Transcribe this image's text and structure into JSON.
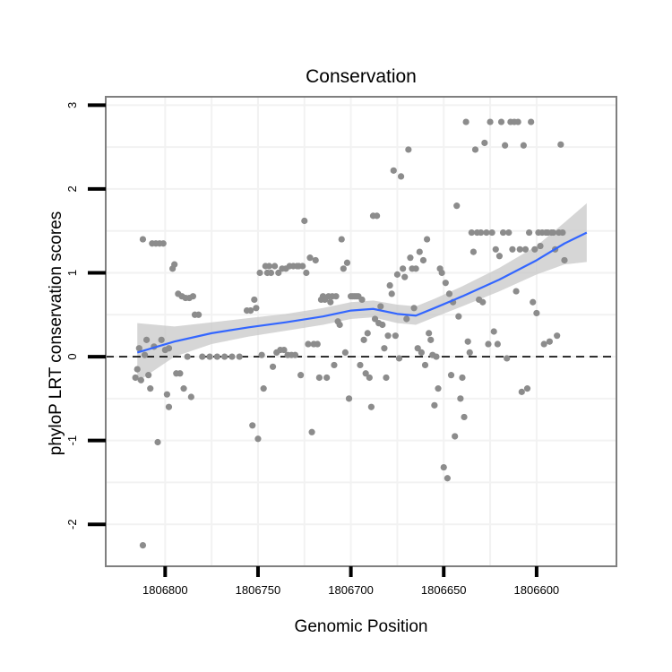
{
  "chart_data": {
    "type": "scatter",
    "title": "Conservation",
    "xlabel": "Genomic Position",
    "ylabel": "phyloP LRT conservation scores",
    "x_reversed": true,
    "xlim": [
      1806832,
      1806557
    ],
    "ylim": [
      -2.5,
      3.1
    ],
    "x_ticks": [
      1806800,
      1806750,
      1806700,
      1806650,
      1806600
    ],
    "x_tick_labels": [
      "1806800",
      "1806750",
      "1806700",
      "1806650",
      "1806600"
    ],
    "y_ticks": [
      -2,
      -1,
      0,
      1,
      2,
      3
    ],
    "y_tick_labels": [
      "-2",
      "-1",
      "0",
      "1",
      "2",
      "3"
    ],
    "reference_line": {
      "y": 0,
      "style": "dashed"
    },
    "point_color": "#8c8c8c",
    "smooth_color": "#3366ff",
    "band_color": "#c8c8c8",
    "grid_color": "#f2f2f2",
    "points": [
      {
        "x": 1806816,
        "y": -0.25
      },
      {
        "x": 1806815,
        "y": -0.15
      },
      {
        "x": 1806814,
        "y": 0.1
      },
      {
        "x": 1806813,
        "y": -0.28
      },
      {
        "x": 1806812,
        "y": 1.4
      },
      {
        "x": 1806812,
        "y": -2.25
      },
      {
        "x": 1806811,
        "y": 0.02
      },
      {
        "x": 1806810,
        "y": 0.2
      },
      {
        "x": 1806809,
        "y": -0.22
      },
      {
        "x": 1806808,
        "y": -0.38
      },
      {
        "x": 1806807,
        "y": 1.35
      },
      {
        "x": 1806806,
        "y": 0.12
      },
      {
        "x": 1806805,
        "y": 1.35
      },
      {
        "x": 1806804,
        "y": -1.02
      },
      {
        "x": 1806803,
        "y": 1.35
      },
      {
        "x": 1806802,
        "y": 0.2
      },
      {
        "x": 1806801,
        "y": 1.35
      },
      {
        "x": 1806800,
        "y": 0.08
      },
      {
        "x": 1806799,
        "y": -0.45
      },
      {
        "x": 1806798,
        "y": -0.6
      },
      {
        "x": 1806798,
        "y": 0.1
      },
      {
        "x": 1806796,
        "y": 1.05
      },
      {
        "x": 1806795,
        "y": 1.1
      },
      {
        "x": 1806794,
        "y": -0.2
      },
      {
        "x": 1806793,
        "y": 0.75
      },
      {
        "x": 1806792,
        "y": -0.2
      },
      {
        "x": 1806791,
        "y": 0.72
      },
      {
        "x": 1806790,
        "y": -0.38
      },
      {
        "x": 1806789,
        "y": 0.7
      },
      {
        "x": 1806788,
        "y": 0.0
      },
      {
        "x": 1806787,
        "y": 0.7
      },
      {
        "x": 1806786,
        "y": -0.48
      },
      {
        "x": 1806785,
        "y": 0.72
      },
      {
        "x": 1806784,
        "y": 0.5
      },
      {
        "x": 1806782,
        "y": 0.5
      },
      {
        "x": 1806780,
        "y": 0.0
      },
      {
        "x": 1806776,
        "y": 0.0
      },
      {
        "x": 1806772,
        "y": 0.0
      },
      {
        "x": 1806768,
        "y": 0.0
      },
      {
        "x": 1806764,
        "y": 0.0
      },
      {
        "x": 1806760,
        "y": 0.0
      },
      {
        "x": 1806756,
        "y": 0.55
      },
      {
        "x": 1806754,
        "y": 0.55
      },
      {
        "x": 1806753,
        "y": -0.82
      },
      {
        "x": 1806752,
        "y": 0.68
      },
      {
        "x": 1806751,
        "y": 0.58
      },
      {
        "x": 1806750,
        "y": -0.98
      },
      {
        "x": 1806749,
        "y": 1.0
      },
      {
        "x": 1806748,
        "y": 0.02
      },
      {
        "x": 1806747,
        "y": -0.38
      },
      {
        "x": 1806746,
        "y": 1.08
      },
      {
        "x": 1806745,
        "y": 1.0
      },
      {
        "x": 1806744,
        "y": 1.08
      },
      {
        "x": 1806743,
        "y": 1.0
      },
      {
        "x": 1806742,
        "y": -0.12
      },
      {
        "x": 1806741,
        "y": 1.08
      },
      {
        "x": 1806740,
        "y": 0.05
      },
      {
        "x": 1806739,
        "y": 1.0
      },
      {
        "x": 1806738,
        "y": 0.08
      },
      {
        "x": 1806737,
        "y": 1.05
      },
      {
        "x": 1806736,
        "y": 0.08
      },
      {
        "x": 1806735,
        "y": 1.05
      },
      {
        "x": 1806734,
        "y": 0.02
      },
      {
        "x": 1806733,
        "y": 1.08
      },
      {
        "x": 1806732,
        "y": 0.02
      },
      {
        "x": 1806731,
        "y": 1.08
      },
      {
        "x": 1806730,
        "y": 0.02
      },
      {
        "x": 1806729,
        "y": 1.08
      },
      {
        "x": 1806728,
        "y": 1.08
      },
      {
        "x": 1806727,
        "y": -0.22
      },
      {
        "x": 1806726,
        "y": 1.08
      },
      {
        "x": 1806725,
        "y": 1.62
      },
      {
        "x": 1806724,
        "y": 1.0
      },
      {
        "x": 1806723,
        "y": 0.15
      },
      {
        "x": 1806722,
        "y": 1.18
      },
      {
        "x": 1806721,
        "y": -0.9
      },
      {
        "x": 1806720,
        "y": 0.15
      },
      {
        "x": 1806719,
        "y": 1.15
      },
      {
        "x": 1806718,
        "y": 0.15
      },
      {
        "x": 1806717,
        "y": -0.25
      },
      {
        "x": 1806716,
        "y": 0.68
      },
      {
        "x": 1806715,
        "y": 0.72
      },
      {
        "x": 1806714,
        "y": 0.68
      },
      {
        "x": 1806713,
        "y": -0.25
      },
      {
        "x": 1806712,
        "y": 0.72
      },
      {
        "x": 1806711,
        "y": 0.65
      },
      {
        "x": 1806710,
        "y": 0.72
      },
      {
        "x": 1806709,
        "y": -0.1
      },
      {
        "x": 1806708,
        "y": 0.72
      },
      {
        "x": 1806707,
        "y": 0.42
      },
      {
        "x": 1806706,
        "y": 0.38
      },
      {
        "x": 1806705,
        "y": 1.4
      },
      {
        "x": 1806704,
        "y": 1.05
      },
      {
        "x": 1806703,
        "y": 0.05
      },
      {
        "x": 1806702,
        "y": 1.12
      },
      {
        "x": 1806701,
        "y": -0.5
      },
      {
        "x": 1806700,
        "y": 0.72
      },
      {
        "x": 1806699,
        "y": 0.72
      },
      {
        "x": 1806698,
        "y": 0.72
      },
      {
        "x": 1806697,
        "y": 0.72
      },
      {
        "x": 1806696,
        "y": 0.72
      },
      {
        "x": 1806695,
        "y": -0.1
      },
      {
        "x": 1806694,
        "y": 0.68
      },
      {
        "x": 1806693,
        "y": 0.2
      },
      {
        "x": 1806692,
        "y": -0.2
      },
      {
        "x": 1806691,
        "y": 0.28
      },
      {
        "x": 1806690,
        "y": -0.25
      },
      {
        "x": 1806689,
        "y": -0.6
      },
      {
        "x": 1806688,
        "y": 1.68
      },
      {
        "x": 1806687,
        "y": 0.45
      },
      {
        "x": 1806686,
        "y": 1.68
      },
      {
        "x": 1806685,
        "y": 0.4
      },
      {
        "x": 1806684,
        "y": 0.6
      },
      {
        "x": 1806683,
        "y": 0.38
      },
      {
        "x": 1806682,
        "y": 0.1
      },
      {
        "x": 1806681,
        "y": -0.25
      },
      {
        "x": 1806680,
        "y": 0.25
      },
      {
        "x": 1806679,
        "y": 0.85
      },
      {
        "x": 1806678,
        "y": 0.75
      },
      {
        "x": 1806677,
        "y": 2.22
      },
      {
        "x": 1806676,
        "y": 0.25
      },
      {
        "x": 1806675,
        "y": 0.98
      },
      {
        "x": 1806674,
        "y": -0.02
      },
      {
        "x": 1806673,
        "y": 2.15
      },
      {
        "x": 1806672,
        "y": 1.05
      },
      {
        "x": 1806671,
        "y": 0.95
      },
      {
        "x": 1806670,
        "y": 0.45
      },
      {
        "x": 1806669,
        "y": 2.47
      },
      {
        "x": 1806668,
        "y": 1.18
      },
      {
        "x": 1806667,
        "y": 1.05
      },
      {
        "x": 1806666,
        "y": 0.58
      },
      {
        "x": 1806665,
        "y": 1.05
      },
      {
        "x": 1806664,
        "y": 0.1
      },
      {
        "x": 1806663,
        "y": 1.25
      },
      {
        "x": 1806662,
        "y": 0.05
      },
      {
        "x": 1806661,
        "y": 1.15
      },
      {
        "x": 1806660,
        "y": -0.1
      },
      {
        "x": 1806659,
        "y": 1.4
      },
      {
        "x": 1806658,
        "y": 0.28
      },
      {
        "x": 1806657,
        "y": 0.2
      },
      {
        "x": 1806656,
        "y": 0.02
      },
      {
        "x": 1806655,
        "y": -0.58
      },
      {
        "x": 1806654,
        "y": 0.0
      },
      {
        "x": 1806653,
        "y": -0.38
      },
      {
        "x": 1806652,
        "y": 1.05
      },
      {
        "x": 1806651,
        "y": 1.0
      },
      {
        "x": 1806650,
        "y": -1.32
      },
      {
        "x": 1806649,
        "y": 0.88
      },
      {
        "x": 1806648,
        "y": -1.45
      },
      {
        "x": 1806647,
        "y": 0.75
      },
      {
        "x": 1806646,
        "y": -0.22
      },
      {
        "x": 1806645,
        "y": 0.65
      },
      {
        "x": 1806644,
        "y": -0.95
      },
      {
        "x": 1806643,
        "y": 1.8
      },
      {
        "x": 1806642,
        "y": 0.48
      },
      {
        "x": 1806641,
        "y": -0.5
      },
      {
        "x": 1806640,
        "y": -0.25
      },
      {
        "x": 1806639,
        "y": -0.72
      },
      {
        "x": 1806638,
        "y": 2.8
      },
      {
        "x": 1806637,
        "y": 0.18
      },
      {
        "x": 1806636,
        "y": 0.05
      },
      {
        "x": 1806635,
        "y": 1.48
      },
      {
        "x": 1806634,
        "y": 1.25
      },
      {
        "x": 1806633,
        "y": 2.47
      },
      {
        "x": 1806632,
        "y": 1.48
      },
      {
        "x": 1806631,
        "y": 0.68
      },
      {
        "x": 1806630,
        "y": 1.48
      },
      {
        "x": 1806629,
        "y": 0.65
      },
      {
        "x": 1806628,
        "y": 2.55
      },
      {
        "x": 1806627,
        "y": 1.48
      },
      {
        "x": 1806626,
        "y": 0.15
      },
      {
        "x": 1806625,
        "y": 2.8
      },
      {
        "x": 1806624,
        "y": 1.48
      },
      {
        "x": 1806623,
        "y": 0.3
      },
      {
        "x": 1806622,
        "y": 1.28
      },
      {
        "x": 1806621,
        "y": 0.15
      },
      {
        "x": 1806620,
        "y": 1.2
      },
      {
        "x": 1806619,
        "y": 2.8
      },
      {
        "x": 1806618,
        "y": 1.48
      },
      {
        "x": 1806617,
        "y": 2.52
      },
      {
        "x": 1806616,
        "y": -0.02
      },
      {
        "x": 1806615,
        "y": 1.48
      },
      {
        "x": 1806614,
        "y": 2.8
      },
      {
        "x": 1806613,
        "y": 1.28
      },
      {
        "x": 1806612,
        "y": 2.8
      },
      {
        "x": 1806611,
        "y": 0.78
      },
      {
        "x": 1806610,
        "y": 2.8
      },
      {
        "x": 1806609,
        "y": 1.28
      },
      {
        "x": 1806608,
        "y": -0.42
      },
      {
        "x": 1806607,
        "y": 2.52
      },
      {
        "x": 1806606,
        "y": 1.28
      },
      {
        "x": 1806605,
        "y": -0.38
      },
      {
        "x": 1806604,
        "y": 1.48
      },
      {
        "x": 1806603,
        "y": 2.8
      },
      {
        "x": 1806602,
        "y": 0.65
      },
      {
        "x": 1806601,
        "y": 1.28
      },
      {
        "x": 1806600,
        "y": 0.52
      },
      {
        "x": 1806599,
        "y": 1.48
      },
      {
        "x": 1806598,
        "y": 1.32
      },
      {
        "x": 1806597,
        "y": 1.48
      },
      {
        "x": 1806596,
        "y": 0.15
      },
      {
        "x": 1806595,
        "y": 1.48
      },
      {
        "x": 1806594,
        "y": 1.48
      },
      {
        "x": 1806593,
        "y": 0.18
      },
      {
        "x": 1806592,
        "y": 1.48
      },
      {
        "x": 1806591,
        "y": 1.48
      },
      {
        "x": 1806590,
        "y": 1.28
      },
      {
        "x": 1806589,
        "y": 0.25
      },
      {
        "x": 1806588,
        "y": 1.48
      },
      {
        "x": 1806587,
        "y": 2.53
      },
      {
        "x": 1806586,
        "y": 1.48
      },
      {
        "x": 1806585,
        "y": 1.15
      }
    ],
    "smooth": [
      {
        "x": 1806815,
        "y": 0.05,
        "lo": -0.3,
        "hi": 0.4
      },
      {
        "x": 1806795,
        "y": 0.18,
        "lo": 0.0,
        "hi": 0.36
      },
      {
        "x": 1806775,
        "y": 0.28,
        "lo": 0.15,
        "hi": 0.41
      },
      {
        "x": 1806755,
        "y": 0.35,
        "lo": 0.24,
        "hi": 0.46
      },
      {
        "x": 1806735,
        "y": 0.41,
        "lo": 0.31,
        "hi": 0.51
      },
      {
        "x": 1806715,
        "y": 0.48,
        "lo": 0.38,
        "hi": 0.58
      },
      {
        "x": 1806700,
        "y": 0.55,
        "lo": 0.45,
        "hi": 0.65
      },
      {
        "x": 1806688,
        "y": 0.57,
        "lo": 0.47,
        "hi": 0.67
      },
      {
        "x": 1806675,
        "y": 0.51,
        "lo": 0.4,
        "hi": 0.62
      },
      {
        "x": 1806665,
        "y": 0.49,
        "lo": 0.38,
        "hi": 0.6
      },
      {
        "x": 1806655,
        "y": 0.58,
        "lo": 0.47,
        "hi": 0.69
      },
      {
        "x": 1806640,
        "y": 0.72,
        "lo": 0.6,
        "hi": 0.84
      },
      {
        "x": 1806620,
        "y": 0.92,
        "lo": 0.78,
        "hi": 1.06
      },
      {
        "x": 1806600,
        "y": 1.15,
        "lo": 0.98,
        "hi": 1.32
      },
      {
        "x": 1806585,
        "y": 1.35,
        "lo": 1.1,
        "hi": 1.6
      },
      {
        "x": 1806573,
        "y": 1.48,
        "lo": 1.13,
        "hi": 1.83
      }
    ]
  }
}
